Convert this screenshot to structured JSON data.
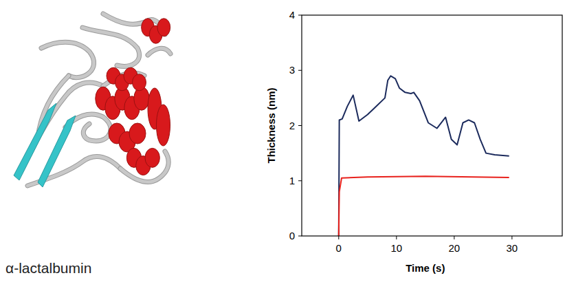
{
  "chart_data": {
    "type": "line",
    "x_label": "Time (s)",
    "y_label": "Thickness (nm)",
    "xlim": [
      -6.4,
      38.7
    ],
    "xticks": [
      0,
      10,
      20,
      30
    ],
    "ylim": [
      0,
      4
    ],
    "yticks": [
      0,
      1,
      2,
      3,
      4
    ],
    "grid": false,
    "series": [
      {
        "color": "#1b2a5c",
        "line_style": "solid",
        "x": [
          0,
          0.1,
          0.6,
          1.5,
          2.5,
          3.5,
          5,
          6.5,
          8,
          8.5,
          9,
          9.8,
          10.5,
          11.5,
          12.5,
          13,
          14,
          15.5,
          17,
          18.5,
          19.5,
          20.5,
          21.5,
          22.5,
          23.5,
          24.5,
          25.5,
          27,
          29.5
        ],
        "values": [
          0,
          2.1,
          2.12,
          2.35,
          2.55,
          2.08,
          2.2,
          2.35,
          2.5,
          2.82,
          2.9,
          2.85,
          2.68,
          2.6,
          2.58,
          2.6,
          2.45,
          2.05,
          1.95,
          2.15,
          1.75,
          1.65,
          2.05,
          2.1,
          2.05,
          1.75,
          1.5,
          1.47,
          1.45
        ]
      },
      {
        "color": "#e8211c",
        "line_style": "solid",
        "x": [
          0,
          0.1,
          0.5,
          5,
          15,
          29.5
        ],
        "values": [
          0,
          0.8,
          1.05,
          1.07,
          1.08,
          1.06
        ]
      }
    ]
  },
  "image": {
    "caption": "α-lactalbumin"
  }
}
